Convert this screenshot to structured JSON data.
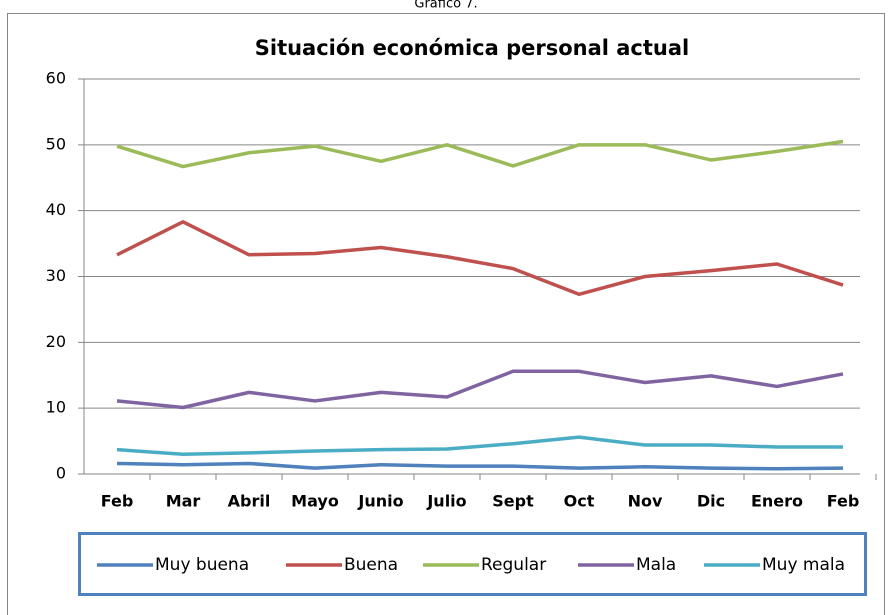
{
  "caption": "Gráfico 7.",
  "chart_data": {
    "type": "line",
    "title": "Situación económica personal actual",
    "categories": [
      "Feb",
      "Mar",
      "Abril",
      "Mayo",
      "Junio",
      "Julio",
      "Sept",
      "Oct",
      "Nov",
      "Dic",
      "Enero",
      "Feb"
    ],
    "series": [
      {
        "name": "Muy buena",
        "color": "#4f81bd",
        "values": [
          1.6,
          1.4,
          1.6,
          0.9,
          1.4,
          1.2,
          1.2,
          0.9,
          1.1,
          0.9,
          0.8,
          0.9
        ]
      },
      {
        "name": "Buena",
        "color": "#c0504d",
        "values": [
          33.3,
          38.3,
          33.3,
          33.5,
          34.4,
          33,
          31.2,
          27.3,
          30,
          30.9,
          31.9,
          28.7
        ]
      },
      {
        "name": "Regular",
        "color": "#9bbb59",
        "values": [
          49.8,
          46.7,
          48.8,
          49.8,
          47.5,
          50,
          46.8,
          50,
          50,
          47.7,
          49,
          50.5
        ]
      },
      {
        "name": "Mala",
        "color": "#8064a2",
        "values": [
          11.1,
          10.1,
          12.4,
          11.1,
          12.4,
          11.7,
          15.6,
          15.6,
          13.9,
          14.9,
          13.3,
          15.2
        ]
      },
      {
        "name": "Muy mala",
        "color": "#4bacc6",
        "values": [
          3.7,
          3,
          3.2,
          3.5,
          3.7,
          3.8,
          4.6,
          5.6,
          4.4,
          4.4,
          4.1,
          4.1
        ]
      }
    ],
    "ylim": [
      0,
      60
    ],
    "yticks": [
      0,
      10,
      20,
      30,
      40,
      50,
      60
    ],
    "grid": true,
    "legend": "bottom"
  }
}
